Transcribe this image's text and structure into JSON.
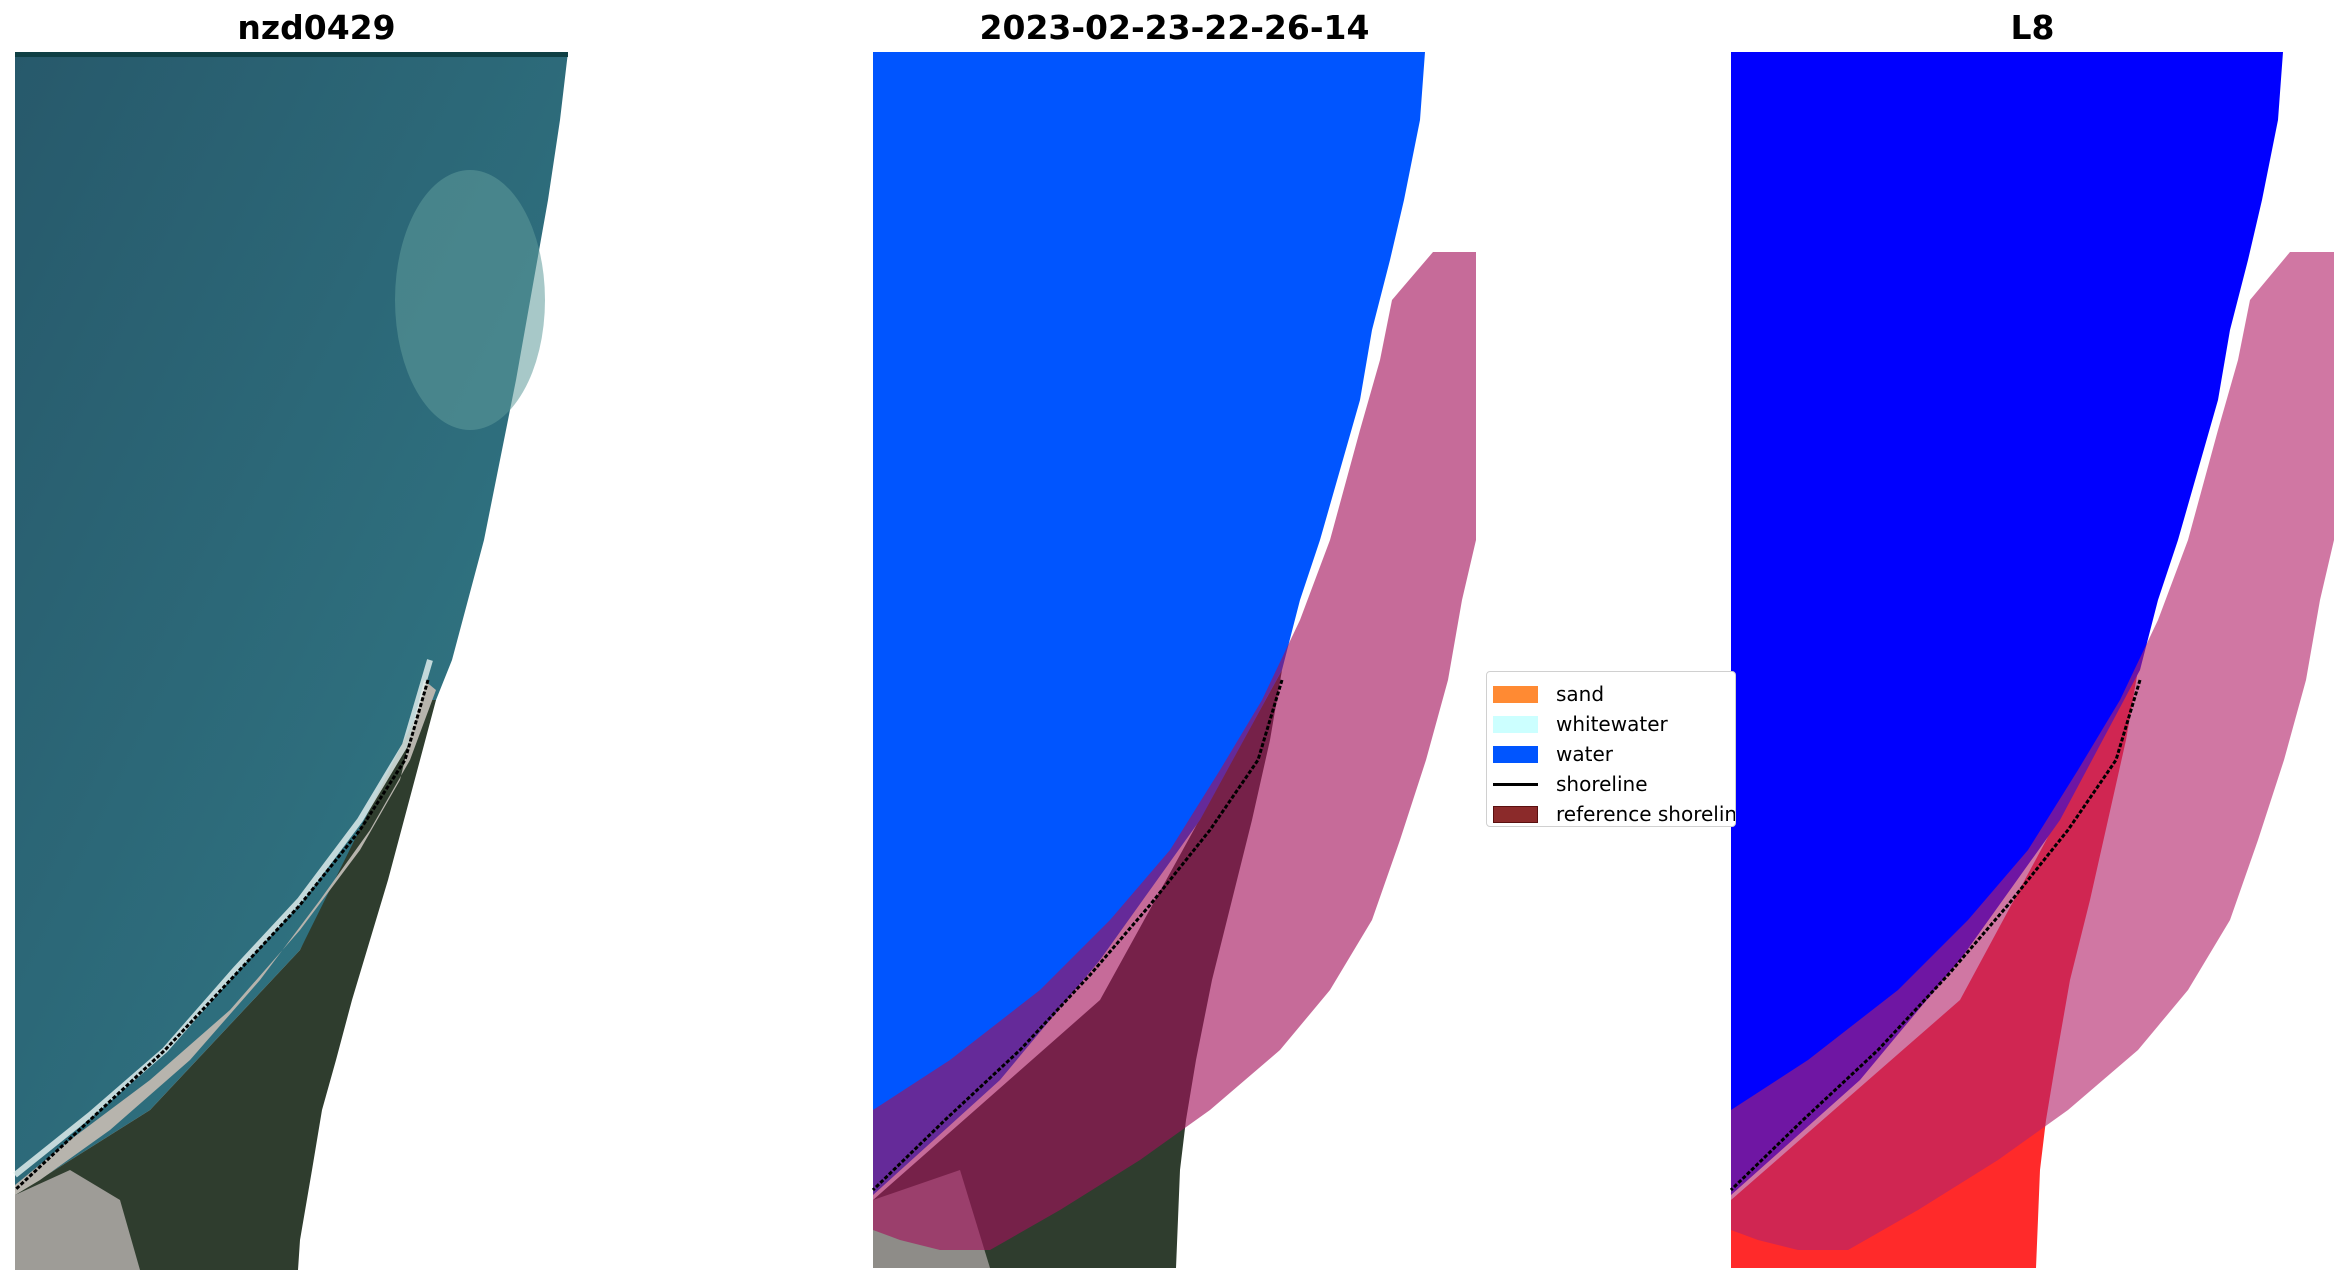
{
  "panels": [
    {
      "title": "nzd0429"
    },
    {
      "title": "2023-02-23-22-26-14"
    },
    {
      "title": "L8"
    }
  ],
  "legend": {
    "items": [
      {
        "label": "sand",
        "color": "#ff8a33"
      },
      {
        "label": "whitewater",
        "color": "#ccffff"
      },
      {
        "label": "water",
        "color": "#0055ff"
      },
      {
        "label": "shoreline",
        "color": "#000000"
      },
      {
        "label": "reference shoreline",
        "color": "#8b2a2a"
      }
    ]
  },
  "colors": {
    "sea_rgb": "#2e6b7a",
    "beach": "#b7b4ad",
    "forest": "#2f3d2e",
    "water_class": "#0055ff",
    "water_index": "#0000ff",
    "land_index": "#ff1a1a",
    "reference_buffer": "#b3246b"
  }
}
